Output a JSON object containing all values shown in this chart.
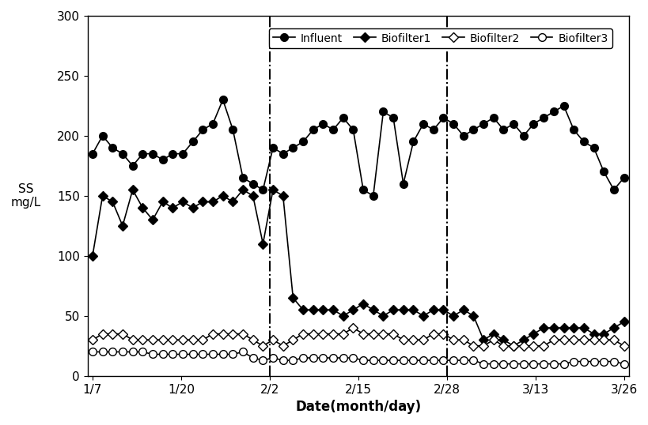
{
  "title": "",
  "xlabel": "Date(month/day)",
  "ylabel_lines": [
    "",
    "L",
    "g",
    "m",
    "S",
    "S"
  ],
  "ylim": [
    0,
    300
  ],
  "yticks": [
    0,
    50,
    100,
    150,
    200,
    250,
    300
  ],
  "xtick_labels": [
    "1/7",
    "1/20",
    "2/2",
    "2/15",
    "2/28",
    "3/13",
    "3/26"
  ],
  "tick_days": [
    0,
    13,
    26,
    39,
    52,
    65,
    78
  ],
  "total_days": 78,
  "vline1_day": 26,
  "vline2_day": 52,
  "series": {
    "Influent": {
      "marker": "o",
      "marker_face": "black",
      "markersize": 7,
      "values": [
        185,
        200,
        190,
        185,
        175,
        185,
        185,
        180,
        185,
        185,
        195,
        205,
        210,
        230,
        205,
        165,
        160,
        155,
        190,
        185,
        190,
        195,
        205,
        210,
        205,
        215,
        205,
        155,
        150,
        220,
        215,
        160,
        195,
        210,
        205,
        215,
        210,
        200,
        205,
        210,
        215,
        205,
        210,
        200,
        210,
        215,
        220,
        225,
        205,
        195,
        190,
        170,
        155,
        165
      ]
    },
    "Biofilter1": {
      "marker": "D",
      "marker_face": "black",
      "markersize": 6,
      "values": [
        100,
        150,
        145,
        125,
        155,
        140,
        130,
        145,
        140,
        145,
        140,
        145,
        145,
        150,
        145,
        155,
        150,
        110,
        155,
        150,
        65,
        55,
        55,
        55,
        55,
        50,
        55,
        60,
        55,
        50,
        55,
        55,
        55,
        50,
        55,
        55,
        50,
        55,
        50,
        30,
        35,
        30,
        25,
        30,
        35,
        40,
        40,
        40,
        40,
        40,
        35,
        35,
        40,
        45
      ]
    },
    "Biofilter2": {
      "marker": "D",
      "marker_face": "white",
      "markersize": 6,
      "values": [
        30,
        35,
        35,
        35,
        30,
        30,
        30,
        30,
        30,
        30,
        30,
        30,
        35,
        35,
        35,
        35,
        30,
        25,
        30,
        25,
        30,
        35,
        35,
        35,
        35,
        35,
        40,
        35,
        35,
        35,
        35,
        30,
        30,
        30,
        35,
        35,
        30,
        30,
        25,
        25,
        30,
        25,
        25,
        25,
        25,
        25,
        30,
        30,
        30,
        30,
        30,
        30,
        30,
        25
      ]
    },
    "Biofilter3": {
      "marker": "o",
      "marker_face": "white",
      "markersize": 7,
      "values": [
        20,
        20,
        20,
        20,
        20,
        20,
        18,
        18,
        18,
        18,
        18,
        18,
        18,
        18,
        18,
        20,
        15,
        13,
        15,
        13,
        13,
        15,
        15,
        15,
        15,
        15,
        15,
        13,
        13,
        13,
        13,
        13,
        13,
        13,
        13,
        13,
        13,
        13,
        13,
        10,
        10,
        10,
        10,
        10,
        10,
        10,
        10,
        10,
        12,
        12,
        12,
        12,
        12,
        10
      ]
    }
  },
  "linewidth": 1.2,
  "background_color": "#ffffff",
  "figsize": [
    8.2,
    5.38
  ],
  "dpi": 100,
  "legend_labels": [
    "Influent",
    "Biofilter1",
    "Biofilter2",
    "Biofilter3"
  ],
  "legend_fontsize": 10,
  "xlabel_fontsize": 12,
  "tick_fontsize": 11
}
